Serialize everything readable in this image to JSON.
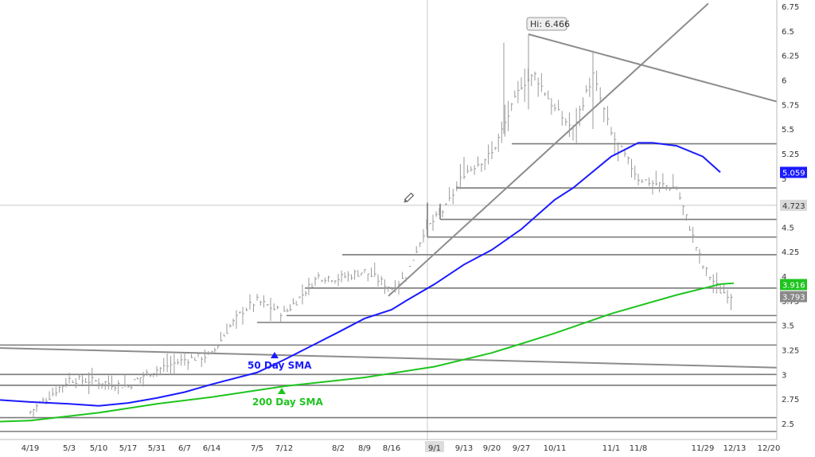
{
  "chart_data": {
    "type": "line",
    "y_axis": {
      "position": "right",
      "ticks": [
        "6.75",
        "6.5",
        "6.25",
        "6",
        "5.75",
        "5.5",
        "5.25",
        "5",
        "4.75",
        "4.5",
        "4.25",
        "4",
        "3.75",
        "3.5",
        "3.25",
        "3",
        "2.75",
        "2.5"
      ],
      "ylim": [
        2.4,
        6.8
      ]
    },
    "x_axis": {
      "ticks": [
        "4/19",
        "5/3",
        "5/10",
        "5/17",
        "5/31",
        "6/7",
        "6/14",
        "7/5",
        "7/12",
        "8/2",
        "8/9",
        "8/16",
        "9/1",
        "9/13",
        "9/20",
        "9/27",
        "10/11",
        "11/1",
        "11/8",
        "11/29",
        "12/13",
        "12/20"
      ],
      "highlighted_tick": "9/1"
    },
    "series": [
      {
        "name": "50 Day SMA",
        "color": "#1a1aff",
        "points": [
          [
            "4/19",
            2.72
          ],
          [
            "5/3",
            2.7
          ],
          [
            "5/10",
            2.68
          ],
          [
            "5/17",
            2.71
          ],
          [
            "5/31",
            2.76
          ],
          [
            "6/7",
            2.82
          ],
          [
            "6/14",
            2.9
          ],
          [
            "7/5",
            3.02
          ],
          [
            "7/12",
            3.15
          ],
          [
            "8/2",
            3.43
          ],
          [
            "8/9",
            3.57
          ],
          [
            "8/16",
            3.66
          ],
          [
            "8/23",
            3.75
          ],
          [
            "9/1",
            3.92
          ],
          [
            "9/13",
            4.12
          ],
          [
            "9/20",
            4.27
          ],
          [
            "9/27",
            4.48
          ],
          [
            "10/11",
            4.78
          ],
          [
            "10/18",
            4.9
          ],
          [
            "11/1",
            5.22
          ],
          [
            "11/8",
            5.36
          ],
          [
            "11/15",
            5.36
          ],
          [
            "11/22",
            5.33
          ],
          [
            "11/29",
            5.22
          ],
          [
            "12/6",
            5.06
          ]
        ],
        "label": "50 Day SMA"
      },
      {
        "name": "200 Day SMA",
        "color": "#1ec41e",
        "points": [
          [
            "4/19",
            2.53
          ],
          [
            "5/10",
            2.61
          ],
          [
            "5/31",
            2.7
          ],
          [
            "6/14",
            2.77
          ],
          [
            "7/12",
            2.88
          ],
          [
            "8/9",
            2.97
          ],
          [
            "9/1",
            3.08
          ],
          [
            "9/20",
            3.22
          ],
          [
            "10/11",
            3.42
          ],
          [
            "11/1",
            3.62
          ],
          [
            "11/22",
            3.81
          ],
          [
            "12/6",
            3.92
          ]
        ],
        "label": "200 Day SMA"
      }
    ],
    "price_bars_approx": [
      [
        "4/19",
        2.62
      ],
      [
        "4/26",
        2.78
      ],
      [
        "5/3",
        2.95
      ],
      [
        "5/10",
        2.93
      ],
      [
        "5/17",
        2.88
      ],
      [
        "5/24",
        2.99
      ],
      [
        "5/31",
        3.05
      ],
      [
        "6/7",
        3.15
      ],
      [
        "6/14",
        3.2
      ],
      [
        "6/21",
        3.45
      ],
      [
        "6/28",
        3.65
      ],
      [
        "7/5",
        3.75
      ],
      [
        "7/12",
        3.62
      ],
      [
        "7/19",
        3.78
      ],
      [
        "7/26",
        4.0
      ],
      [
        "8/2",
        3.98
      ],
      [
        "8/9",
        4.05
      ],
      [
        "8/16",
        3.88
      ],
      [
        "8/23",
        4.0
      ],
      [
        "8/30",
        4.45
      ],
      [
        "9/6",
        4.7
      ],
      [
        "9/13",
        5.05
      ],
      [
        "9/20",
        5.25
      ],
      [
        "9/27",
        5.95
      ],
      [
        "10/4",
        6.05
      ],
      [
        "10/11",
        5.7
      ],
      [
        "10/18",
        5.5
      ],
      [
        "10/25",
        6.05
      ],
      [
        "11/1",
        5.45
      ],
      [
        "11/8",
        5.0
      ],
      [
        "11/15",
        4.95
      ],
      [
        "11/22",
        4.9
      ],
      [
        "11/29",
        4.1
      ],
      [
        "12/6",
        3.85
      ],
      [
        "12/13",
        3.8
      ]
    ],
    "horizontal_levels": [
      5.35,
      4.9,
      4.58,
      4.4,
      4.22,
      3.88,
      3.6,
      3.53,
      3.3,
      3.0,
      2.89,
      2.56,
      2.42
    ],
    "annotations": {
      "high_label": "Hi: 6.466",
      "high_value": 6.466,
      "sma50_label": "50 Day SMA",
      "sma200_label": "200 Day SMA"
    },
    "axis_badges": {
      "sma50": {
        "text": "5.059",
        "value": 5.059,
        "bg": "#1a1aff",
        "fg": "#ffffff"
      },
      "crosshair": {
        "text": "4.723",
        "value": 4.723,
        "bg": "#d9d9d9",
        "fg": "#333333"
      },
      "sma200": {
        "text": "3.916",
        "value": 3.916,
        "bg": "#1ec41e",
        "fg": "#ffffff"
      },
      "last": {
        "text": "3.793",
        "value": 3.793,
        "bg": "#8a8a8a",
        "fg": "#ffffff"
      }
    },
    "colors": {
      "price": "#9a9a9a",
      "levels": "#7a7a7a",
      "trendline": "#8c8c8c",
      "crosshair": "#c8c8c8"
    }
  }
}
